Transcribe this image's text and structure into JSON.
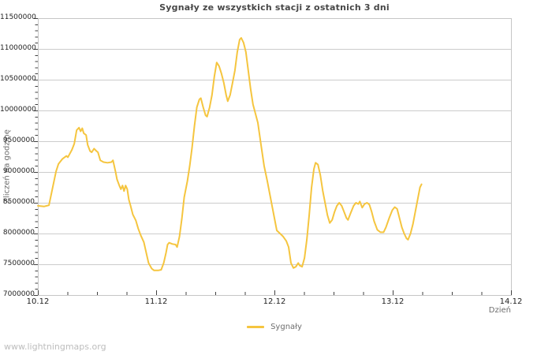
{
  "watermark": "www.lightningmaps.org",
  "chart_data": {
    "type": "line",
    "title": "Sygnały ze wszystkich stacji z ostatnich 3 dni",
    "xlabel": "Dzień",
    "ylabel": "Zliczeń na godzinę",
    "grid": "horizontal",
    "legend_position": "bottom-center",
    "xlim_days": [
      0,
      4
    ],
    "ylim": [
      7000000,
      11500000
    ],
    "y_major_step": 500000,
    "y_minor_step": 100000,
    "x_major_step_days": 1,
    "x_minor_step_days": 0.25,
    "x_tick_labels": [
      "10.12",
      "11.12",
      "12.12",
      "13.12",
      "14.12"
    ],
    "y_tick_labels": [
      "7000000",
      "7500000",
      "8000000",
      "8500000",
      "9000000",
      "9500000",
      "10000000",
      "10500000",
      "11000000",
      "11500000"
    ],
    "colors": {
      "line": "#f5c53f",
      "grid": "#cccccc",
      "border": "#c6c6c6",
      "tick": "#404040",
      "tick_label": "#1f1f1f",
      "title": "#474747",
      "axis_title": "#6e6e6e",
      "legend_text": "#6e6e6e",
      "watermark": "#bdbdbd"
    },
    "series": [
      {
        "name": "Sygnały",
        "color": "#f5c53f",
        "points": [
          [
            0.0,
            8450000
          ],
          [
            0.054,
            8440000
          ],
          [
            0.094,
            8460000
          ],
          [
            0.127,
            8760000
          ],
          [
            0.154,
            9010000
          ],
          [
            0.174,
            9130000
          ],
          [
            0.207,
            9210000
          ],
          [
            0.241,
            9260000
          ],
          [
            0.254,
            9240000
          ],
          [
            0.288,
            9360000
          ],
          [
            0.308,
            9460000
          ],
          [
            0.328,
            9680000
          ],
          [
            0.348,
            9720000
          ],
          [
            0.361,
            9660000
          ],
          [
            0.375,
            9710000
          ],
          [
            0.388,
            9630000
          ],
          [
            0.408,
            9600000
          ],
          [
            0.421,
            9440000
          ],
          [
            0.441,
            9340000
          ],
          [
            0.455,
            9320000
          ],
          [
            0.475,
            9380000
          ],
          [
            0.495,
            9340000
          ],
          [
            0.508,
            9320000
          ],
          [
            0.528,
            9190000
          ],
          [
            0.555,
            9160000
          ],
          [
            0.589,
            9150000
          ],
          [
            0.622,
            9160000
          ],
          [
            0.635,
            9190000
          ],
          [
            0.656,
            9010000
          ],
          [
            0.669,
            8880000
          ],
          [
            0.689,
            8780000
          ],
          [
            0.702,
            8720000
          ],
          [
            0.716,
            8780000
          ],
          [
            0.729,
            8690000
          ],
          [
            0.742,
            8780000
          ],
          [
            0.756,
            8720000
          ],
          [
            0.769,
            8550000
          ],
          [
            0.783,
            8460000
          ],
          [
            0.803,
            8310000
          ],
          [
            0.829,
            8210000
          ],
          [
            0.849,
            8080000
          ],
          [
            0.87,
            7970000
          ],
          [
            0.896,
            7860000
          ],
          [
            0.916,
            7690000
          ],
          [
            0.936,
            7520000
          ],
          [
            0.963,
            7430000
          ],
          [
            0.983,
            7400000
          ],
          [
            1.017,
            7400000
          ],
          [
            1.043,
            7410000
          ],
          [
            1.064,
            7520000
          ],
          [
            1.084,
            7690000
          ],
          [
            1.097,
            7820000
          ],
          [
            1.11,
            7850000
          ],
          [
            1.137,
            7830000
          ],
          [
            1.164,
            7820000
          ],
          [
            1.177,
            7780000
          ],
          [
            1.197,
            7950000
          ],
          [
            1.217,
            8240000
          ],
          [
            1.237,
            8590000
          ],
          [
            1.264,
            8850000
          ],
          [
            1.284,
            9100000
          ],
          [
            1.304,
            9400000
          ],
          [
            1.324,
            9750000
          ],
          [
            1.344,
            10050000
          ],
          [
            1.365,
            10180000
          ],
          [
            1.378,
            10200000
          ],
          [
            1.398,
            10050000
          ],
          [
            1.418,
            9920000
          ],
          [
            1.431,
            9900000
          ],
          [
            1.452,
            10050000
          ],
          [
            1.472,
            10250000
          ],
          [
            1.492,
            10550000
          ],
          [
            1.512,
            10780000
          ],
          [
            1.532,
            10720000
          ],
          [
            1.552,
            10600000
          ],
          [
            1.572,
            10450000
          ],
          [
            1.592,
            10250000
          ],
          [
            1.605,
            10150000
          ],
          [
            1.625,
            10250000
          ],
          [
            1.646,
            10450000
          ],
          [
            1.666,
            10650000
          ],
          [
            1.686,
            10950000
          ],
          [
            1.706,
            11150000
          ],
          [
            1.719,
            11180000
          ],
          [
            1.739,
            11100000
          ],
          [
            1.759,
            10950000
          ],
          [
            1.779,
            10650000
          ],
          [
            1.799,
            10350000
          ],
          [
            1.819,
            10100000
          ],
          [
            1.839,
            9950000
          ],
          [
            1.86,
            9800000
          ],
          [
            1.886,
            9450000
          ],
          [
            1.913,
            9100000
          ],
          [
            1.94,
            8850000
          ],
          [
            1.96,
            8650000
          ],
          [
            1.98,
            8450000
          ],
          [
            2.0,
            8250000
          ],
          [
            2.02,
            8050000
          ],
          [
            2.047,
            8000000
          ],
          [
            2.074,
            7950000
          ],
          [
            2.1,
            7880000
          ],
          [
            2.12,
            7780000
          ],
          [
            2.14,
            7520000
          ],
          [
            2.161,
            7440000
          ],
          [
            2.181,
            7460000
          ],
          [
            2.201,
            7520000
          ],
          [
            2.214,
            7480000
          ],
          [
            2.234,
            7460000
          ],
          [
            2.254,
            7600000
          ],
          [
            2.274,
            7900000
          ],
          [
            2.294,
            8300000
          ],
          [
            2.314,
            8750000
          ],
          [
            2.334,
            9050000
          ],
          [
            2.348,
            9150000
          ],
          [
            2.368,
            9120000
          ],
          [
            2.388,
            8950000
          ],
          [
            2.408,
            8700000
          ],
          [
            2.428,
            8500000
          ],
          [
            2.448,
            8300000
          ],
          [
            2.468,
            8170000
          ],
          [
            2.488,
            8220000
          ],
          [
            2.508,
            8350000
          ],
          [
            2.528,
            8450000
          ],
          [
            2.548,
            8500000
          ],
          [
            2.569,
            8450000
          ],
          [
            2.589,
            8350000
          ],
          [
            2.609,
            8250000
          ],
          [
            2.622,
            8220000
          ],
          [
            2.642,
            8320000
          ],
          [
            2.669,
            8450000
          ],
          [
            2.689,
            8500000
          ],
          [
            2.709,
            8480000
          ],
          [
            2.722,
            8520000
          ],
          [
            2.742,
            8420000
          ],
          [
            2.762,
            8480000
          ],
          [
            2.783,
            8500000
          ],
          [
            2.803,
            8470000
          ],
          [
            2.823,
            8350000
          ],
          [
            2.843,
            8200000
          ],
          [
            2.87,
            8060000
          ],
          [
            2.896,
            8020000
          ],
          [
            2.923,
            8020000
          ],
          [
            2.943,
            8100000
          ],
          [
            2.97,
            8250000
          ],
          [
            2.997,
            8380000
          ],
          [
            3.017,
            8430000
          ],
          [
            3.037,
            8400000
          ],
          [
            3.057,
            8250000
          ],
          [
            3.077,
            8100000
          ],
          [
            3.097,
            8000000
          ],
          [
            3.117,
            7920000
          ],
          [
            3.13,
            7900000
          ],
          [
            3.151,
            8000000
          ],
          [
            3.171,
            8150000
          ],
          [
            3.191,
            8350000
          ],
          [
            3.211,
            8550000
          ],
          [
            3.231,
            8750000
          ],
          [
            3.244,
            8800000
          ]
        ]
      }
    ]
  }
}
